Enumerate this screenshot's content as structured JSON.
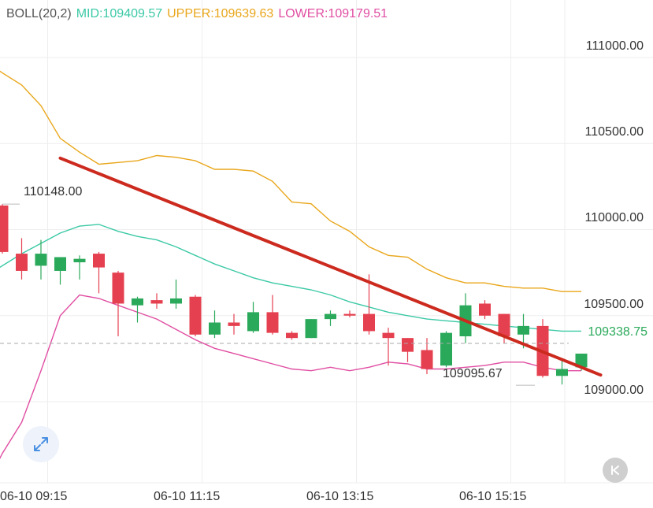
{
  "legend": {
    "name": "BOLL(20,2)",
    "mid": "MID:109409.57",
    "upper": "UPPER:109639.63",
    "lower": "LOWER:109179.51"
  },
  "colors": {
    "up": "#2aa95a",
    "down": "#e5404f",
    "mid": "#3cc9a6",
    "upper": "#e9a61a",
    "lower": "#e04ea2",
    "trend": "#cc2a1e",
    "grid": "#eeeeee",
    "dashed": "#aaaaaa"
  },
  "axis": {
    "y_ticks": [
      "111000.00",
      "110500.00",
      "110000.00",
      "109500.00",
      "109000.00"
    ],
    "x_ticks": [
      "06-10 09:15",
      "06-10 11:15",
      "06-10 13:15",
      "06-10 15:15"
    ],
    "last_price": "109338.75"
  },
  "annotations": {
    "high_label": "110148.00",
    "low_label": "109095.67"
  },
  "icons": {
    "expand": "expand-icon",
    "back": "chevron-left-bar-icon"
  },
  "chart_data": {
    "type": "candlestick",
    "interval_minutes": 15,
    "ylim": [
      108570,
      111160
    ],
    "last_price": 109338.75,
    "candles": [
      {
        "time": "09:00",
        "open": 110140,
        "high": 110148,
        "low": 109860,
        "close": 109870
      },
      {
        "time": "09:15",
        "open": 109860,
        "high": 109950,
        "low": 109710,
        "close": 109760
      },
      {
        "time": "09:30",
        "open": 109790,
        "high": 109940,
        "low": 109710,
        "close": 109860
      },
      {
        "time": "09:45",
        "open": 109760,
        "high": 109840,
        "low": 109680,
        "close": 109840
      },
      {
        "time": "10:00",
        "open": 109810,
        "high": 109850,
        "low": 109710,
        "close": 109830
      },
      {
        "time": "10:15",
        "open": 109860,
        "high": 109870,
        "low": 109630,
        "close": 109780
      },
      {
        "time": "10:30",
        "open": 109750,
        "high": 109760,
        "low": 109380,
        "close": 109570
      },
      {
        "time": "10:45",
        "open": 109560,
        "high": 109610,
        "low": 109460,
        "close": 109600
      },
      {
        "time": "11:00",
        "open": 109590,
        "high": 109630,
        "low": 109540,
        "close": 109570
      },
      {
        "time": "11:15",
        "open": 109570,
        "high": 109710,
        "low": 109540,
        "close": 109600
      },
      {
        "time": "11:30",
        "open": 109610,
        "high": 109620,
        "low": 109380,
        "close": 109390
      },
      {
        "time": "11:45",
        "open": 109390,
        "high": 109530,
        "low": 109370,
        "close": 109460
      },
      {
        "time": "12:00",
        "open": 109460,
        "high": 109510,
        "low": 109390,
        "close": 109440
      },
      {
        "time": "12:15",
        "open": 109410,
        "high": 109580,
        "low": 109400,
        "close": 109520
      },
      {
        "time": "12:30",
        "open": 109520,
        "high": 109620,
        "low": 109390,
        "close": 109400
      },
      {
        "time": "12:45",
        "open": 109400,
        "high": 109410,
        "low": 109360,
        "close": 109370
      },
      {
        "time": "13:00",
        "open": 109370,
        "high": 109480,
        "low": 109370,
        "close": 109480
      },
      {
        "time": "13:15",
        "open": 109480,
        "high": 109530,
        "low": 109440,
        "close": 109510
      },
      {
        "time": "13:30",
        "open": 109510,
        "high": 109530,
        "low": 109490,
        "close": 109500
      },
      {
        "time": "13:45",
        "open": 109510,
        "high": 109740,
        "low": 109390,
        "close": 109410
      },
      {
        "time": "14:00",
        "open": 109400,
        "high": 109430,
        "low": 109210,
        "close": 109370
      },
      {
        "time": "14:15",
        "open": 109370,
        "high": 109370,
        "low": 109230,
        "close": 109290
      },
      {
        "time": "14:30",
        "open": 109300,
        "high": 109370,
        "low": 109160,
        "close": 109190
      },
      {
        "time": "14:45",
        "open": 109210,
        "high": 109410,
        "low": 109200,
        "close": 109400
      },
      {
        "time": "15:00",
        "open": 109380,
        "high": 109630,
        "low": 109340,
        "close": 109560
      },
      {
        "time": "15:15",
        "open": 109570,
        "high": 109590,
        "low": 109480,
        "close": 109500
      },
      {
        "time": "15:30",
        "open": 109510,
        "high": 109510,
        "low": 109340,
        "close": 109380
      },
      {
        "time": "15:45",
        "open": 109390,
        "high": 109510,
        "low": 109310,
        "close": 109440
      },
      {
        "time": "16:00",
        "open": 109440,
        "high": 109480,
        "low": 109140,
        "close": 109150
      },
      {
        "time": "16:15",
        "open": 109150,
        "high": 109240,
        "low": 109100,
        "close": 109190
      },
      {
        "time": "16:30",
        "open": 109200,
        "high": 109338.75,
        "low": 109180,
        "close": 109338.75
      }
    ],
    "upper_band": [
      {
        "time": "08:45",
        "value": 110990
      },
      {
        "time": "09:00",
        "value": 110910
      },
      {
        "time": "09:15",
        "value": 110840
      },
      {
        "time": "09:30",
        "value": 110720
      },
      {
        "time": "09:45",
        "value": 110530
      },
      {
        "time": "10:00",
        "value": 110450
      },
      {
        "time": "10:15",
        "value": 110380
      },
      {
        "time": "10:30",
        "value": 110390
      },
      {
        "time": "10:45",
        "value": 110400
      },
      {
        "time": "11:00",
        "value": 110430
      },
      {
        "time": "11:15",
        "value": 110420
      },
      {
        "time": "11:30",
        "value": 110400
      },
      {
        "time": "11:45",
        "value": 110350
      },
      {
        "time": "12:00",
        "value": 110350
      },
      {
        "time": "12:15",
        "value": 110340
      },
      {
        "time": "12:30",
        "value": 110280
      },
      {
        "time": "12:45",
        "value": 110160
      },
      {
        "time": "13:00",
        "value": 110150
      },
      {
        "time": "13:15",
        "value": 110050
      },
      {
        "time": "13:30",
        "value": 109990
      },
      {
        "time": "13:45",
        "value": 109900
      },
      {
        "time": "14:00",
        "value": 109850
      },
      {
        "time": "14:15",
        "value": 109840
      },
      {
        "time": "14:30",
        "value": 109770
      },
      {
        "time": "14:45",
        "value": 109720
      },
      {
        "time": "15:00",
        "value": 109690
      },
      {
        "time": "15:15",
        "value": 109690
      },
      {
        "time": "15:30",
        "value": 109670
      },
      {
        "time": "15:45",
        "value": 109660
      },
      {
        "time": "16:00",
        "value": 109660
      },
      {
        "time": "16:15",
        "value": 109640
      },
      {
        "time": "16:30",
        "value": 109640
      }
    ],
    "mid_band": [
      {
        "time": "08:45",
        "value": 109720
      },
      {
        "time": "09:00",
        "value": 109790
      },
      {
        "time": "09:15",
        "value": 109860
      },
      {
        "time": "09:30",
        "value": 109920
      },
      {
        "time": "09:45",
        "value": 109980
      },
      {
        "time": "10:00",
        "value": 110020
      },
      {
        "time": "10:15",
        "value": 110030
      },
      {
        "time": "10:30",
        "value": 109990
      },
      {
        "time": "10:45",
        "value": 109960
      },
      {
        "time": "11:00",
        "value": 109940
      },
      {
        "time": "11:15",
        "value": 109900
      },
      {
        "time": "11:30",
        "value": 109850
      },
      {
        "time": "11:45",
        "value": 109800
      },
      {
        "time": "12:00",
        "value": 109760
      },
      {
        "time": "12:15",
        "value": 109720
      },
      {
        "time": "12:30",
        "value": 109690
      },
      {
        "time": "12:45",
        "value": 109670
      },
      {
        "time": "13:00",
        "value": 109650
      },
      {
        "time": "13:15",
        "value": 109620
      },
      {
        "time": "13:30",
        "value": 109580
      },
      {
        "time": "13:45",
        "value": 109550
      },
      {
        "time": "14:00",
        "value": 109520
      },
      {
        "time": "14:15",
        "value": 109500
      },
      {
        "time": "14:30",
        "value": 109480
      },
      {
        "time": "14:45",
        "value": 109470
      },
      {
        "time": "15:00",
        "value": 109460
      },
      {
        "time": "15:15",
        "value": 109450
      },
      {
        "time": "15:30",
        "value": 109440
      },
      {
        "time": "15:45",
        "value": 109430
      },
      {
        "time": "16:00",
        "value": 109420
      },
      {
        "time": "16:15",
        "value": 109410
      },
      {
        "time": "16:30",
        "value": 109410
      }
    ],
    "lower_band": [
      {
        "time": "08:45",
        "value": 108480
      },
      {
        "time": "09:00",
        "value": 108700
      },
      {
        "time": "09:15",
        "value": 108880
      },
      {
        "time": "09:30",
        "value": 109180
      },
      {
        "time": "09:45",
        "value": 109500
      },
      {
        "time": "10:00",
        "value": 109620
      },
      {
        "time": "10:15",
        "value": 109600
      },
      {
        "time": "10:30",
        "value": 109560
      },
      {
        "time": "10:45",
        "value": 109520
      },
      {
        "time": "11:00",
        "value": 109480
      },
      {
        "time": "11:15",
        "value": 109420
      },
      {
        "time": "11:30",
        "value": 109360
      },
      {
        "time": "11:45",
        "value": 109310
      },
      {
        "time": "12:00",
        "value": 109280
      },
      {
        "time": "12:15",
        "value": 109250
      },
      {
        "time": "12:30",
        "value": 109220
      },
      {
        "time": "12:45",
        "value": 109190
      },
      {
        "time": "13:00",
        "value": 109180
      },
      {
        "time": "13:15",
        "value": 109200
      },
      {
        "time": "13:30",
        "value": 109180
      },
      {
        "time": "13:45",
        "value": 109200
      },
      {
        "time": "14:00",
        "value": 109230
      },
      {
        "time": "14:15",
        "value": 109220
      },
      {
        "time": "14:30",
        "value": 109190
      },
      {
        "time": "14:45",
        "value": 109190
      },
      {
        "time": "15:00",
        "value": 109200
      },
      {
        "time": "15:15",
        "value": 109210
      },
      {
        "time": "15:30",
        "value": 109230
      },
      {
        "time": "15:45",
        "value": 109230
      },
      {
        "time": "16:00",
        "value": 109200
      },
      {
        "time": "16:15",
        "value": 109180
      },
      {
        "time": "16:30",
        "value": 109180
      }
    ],
    "trendline": [
      {
        "time": "09:45",
        "value": 110415
      },
      {
        "time": "16:45",
        "value": 109155
      }
    ]
  }
}
